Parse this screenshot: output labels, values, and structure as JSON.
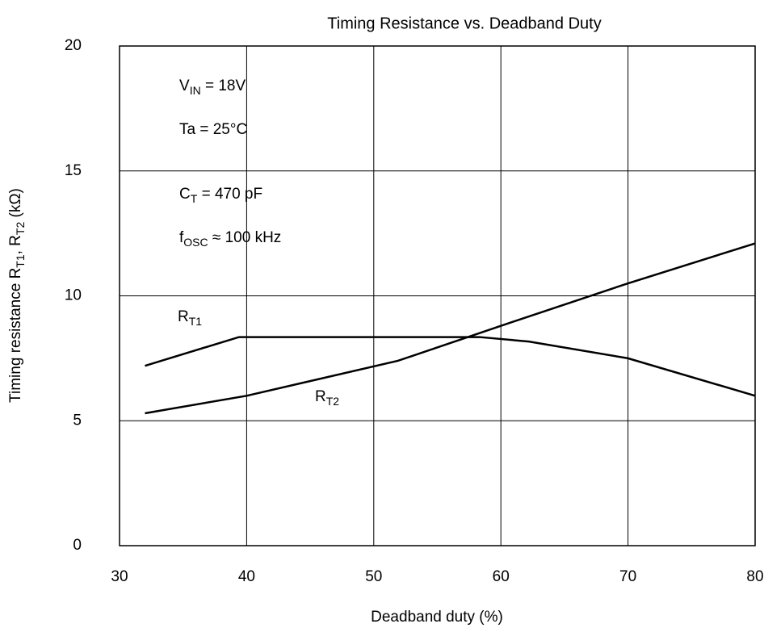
{
  "chart_data": {
    "type": "line",
    "title": "Timing Resistance vs. Deadband Duty",
    "xlabel": "Deadband duty (%)",
    "ylabel": [
      {
        "text": "Timing resistance R"
      },
      {
        "text": "T1",
        "sub": true
      },
      {
        "text": ", R"
      },
      {
        "text": "T2",
        "sub": true
      },
      {
        "text": " (kΩ)"
      }
    ],
    "xlim": [
      30,
      80
    ],
    "ylim": [
      0,
      20
    ],
    "xticks": [
      30,
      40,
      50,
      60,
      70,
      80
    ],
    "yticks": [
      0,
      5,
      10,
      15,
      20
    ],
    "grid": true,
    "annotations": [
      [
        {
          "text": "V"
        },
        {
          "text": "IN",
          "sub": true
        },
        {
          "text": " = 18V"
        }
      ],
      [
        {
          "text": "Ta = 25°C"
        }
      ],
      [
        {
          "text": "C"
        },
        {
          "text": "T",
          "sub": true
        },
        {
          "text": " = 470 pF"
        }
      ],
      [
        {
          "text": "f"
        },
        {
          "text": "OSC",
          "sub": true
        },
        {
          "text": " ≈ 100 kHz"
        }
      ]
    ],
    "series": [
      {
        "label": [
          {
            "text": "R"
          },
          {
            "text": "T1",
            "sub": true
          }
        ],
        "color": "#000000",
        "x": [
          32,
          39.4,
          58.3,
          62.2,
          70,
          80
        ],
        "values": [
          7.2,
          8.35,
          8.35,
          8.17,
          7.5,
          6.0
        ]
      },
      {
        "label": [
          {
            "text": "R"
          },
          {
            "text": "T2",
            "sub": true
          }
        ],
        "color": "#000000",
        "x": [
          32,
          40,
          51.9,
          60,
          70,
          80
        ],
        "values": [
          5.3,
          6.0,
          7.4,
          8.8,
          10.5,
          12.1
        ]
      }
    ]
  }
}
